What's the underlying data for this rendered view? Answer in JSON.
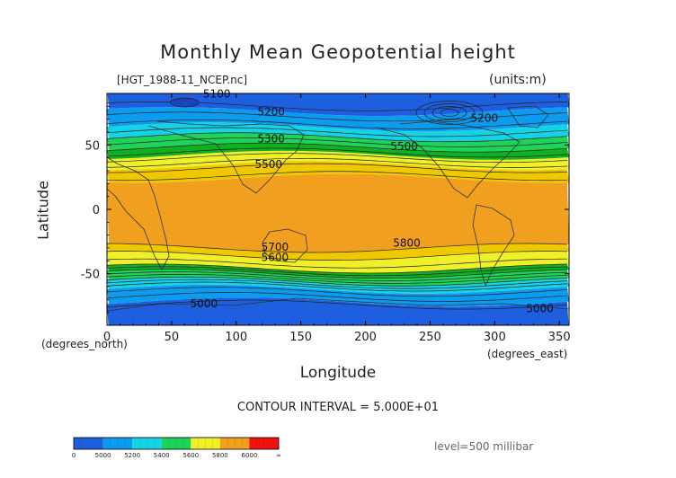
{
  "chart_data": {
    "type": "contour",
    "title": "Monthly Mean Geopotential height",
    "subtitle_left": "[HGT_1988-11_NCEP.nc]",
    "subtitle_right": "(units:m)",
    "xlabel": "Longitude",
    "ylabel": "Latitude",
    "x_unit": "(degrees_north)",
    "x_unit_right": "(degrees_east)",
    "xlim": [
      0,
      357.5
    ],
    "ylim": [
      -90,
      90
    ],
    "xticks": [
      0,
      50,
      100,
      150,
      200,
      250,
      300,
      350
    ],
    "yticks": [
      -50,
      0,
      50
    ],
    "contour_interval_text": "CONTOUR INTERVAL = 5.000E+01",
    "level_text": "level=500 millibar",
    "bands": [
      {
        "lat": [
          -90,
          -72
        ],
        "color": "#1e5fe0"
      },
      {
        "lat": [
          -72,
          -62
        ],
        "color": "#0b9cf0"
      },
      {
        "lat": [
          -62,
          -56
        ],
        "color": "#14d3e6"
      },
      {
        "lat": [
          -56,
          -50
        ],
        "color": "#1fd25a"
      },
      {
        "lat": [
          -50,
          -46
        ],
        "color": "#10b020"
      },
      {
        "lat": [
          -46,
          -36
        ],
        "color": "#f0f028"
      },
      {
        "lat": [
          -36,
          -30
        ],
        "color": "#f0c800"
      },
      {
        "lat": [
          -30,
          24
        ],
        "color": "#f0a01e"
      },
      {
        "lat": [
          24,
          34
        ],
        "color": "#f0c800"
      },
      {
        "lat": [
          34,
          42
        ],
        "color": "#f0f028"
      },
      {
        "lat": [
          42,
          48
        ],
        "color": "#10b020"
      },
      {
        "lat": [
          48,
          56
        ],
        "color": "#1fd25a"
      },
      {
        "lat": [
          56,
          64
        ],
        "color": "#14d3e6"
      },
      {
        "lat": [
          64,
          76
        ],
        "color": "#0b9cf0"
      },
      {
        "lat": [
          76,
          90
        ],
        "color": "#1e5fe0"
      }
    ],
    "contour_labels": [
      {
        "text": "5100",
        "x": 85,
        "y": 87
      },
      {
        "text": "5200",
        "x": 127,
        "y": 73
      },
      {
        "text": "5200",
        "x": 292,
        "y": 68
      },
      {
        "text": "5300",
        "x": 127,
        "y": 52
      },
      {
        "text": "5500",
        "x": 230,
        "y": 46
      },
      {
        "text": "5500",
        "x": 125,
        "y": 32
      },
      {
        "text": "5700",
        "x": 130,
        "y": -32
      },
      {
        "text": "5800",
        "x": 232,
        "y": -29
      },
      {
        "text": "5600",
        "x": 130,
        "y": -40
      },
      {
        "text": "5000",
        "x": 75,
        "y": -76
      },
      {
        "text": "5000",
        "x": 335,
        "y": -80
      }
    ],
    "colorbar": {
      "labels": [
        "0",
        "5000",
        "5200",
        "5400",
        "5600",
        "5800",
        "6000",
        "∞"
      ],
      "colors": [
        "#1e5fe0",
        "#0b9cf0",
        "#14d3e6",
        "#1fd25a",
        "#f0f028",
        "#f0a01e",
        "#f01010"
      ]
    }
  }
}
